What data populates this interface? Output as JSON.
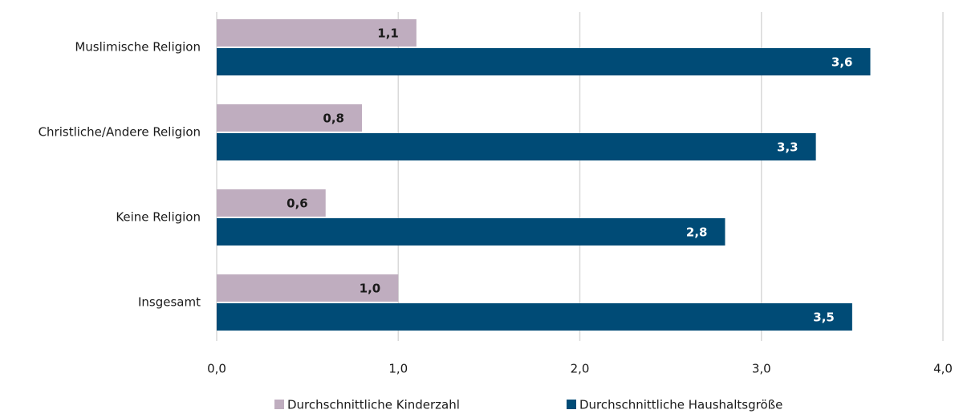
{
  "chart_data": {
    "type": "hbar",
    "categories": [
      "Muslimische Religion",
      "Christliche/Andere Religion",
      "Keine Religion",
      "Insgesamt"
    ],
    "series": [
      {
        "name": "Durchschnittliche Kinderzahl",
        "color": "#bfadbf",
        "values": [
          1.1,
          0.8,
          0.6,
          1.0
        ],
        "value_labels": [
          "1,1",
          "0,8",
          "0,6",
          "1,0"
        ]
      },
      {
        "name": "Durchschnittliche Haushaltsgröße",
        "color": "#004b76",
        "values": [
          3.6,
          3.3,
          2.8,
          3.5
        ],
        "value_labels": [
          "3,6",
          "3,3",
          "2,8",
          "3,5"
        ]
      }
    ],
    "xlim": [
      0,
      4
    ],
    "xticks": [
      {
        "value": 0,
        "label": "0,0"
      },
      {
        "value": 1,
        "label": "1,0"
      },
      {
        "value": 2,
        "label": "2,0"
      },
      {
        "value": 3,
        "label": "3,0"
      },
      {
        "value": 4,
        "label": "4,0"
      }
    ],
    "grid": true,
    "legend": "bottom"
  }
}
